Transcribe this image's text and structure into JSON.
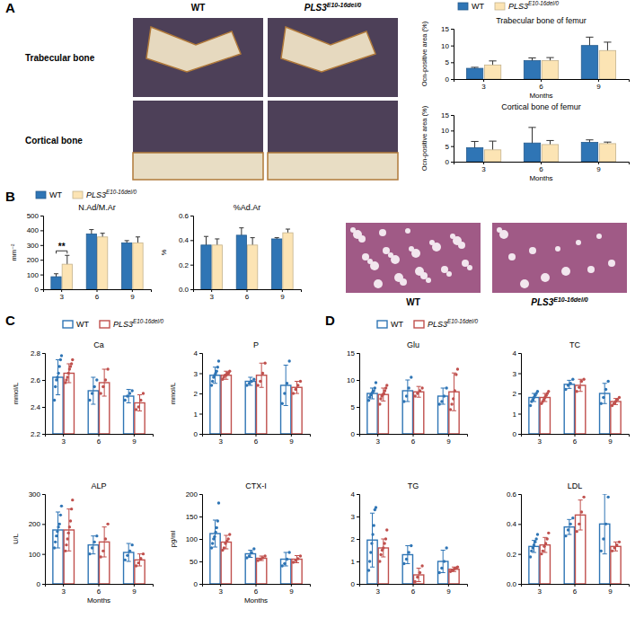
{
  "figure": {
    "panel_labels": [
      "A",
      "B",
      "C",
      "D"
    ],
    "images": [
      {
        "row_labels": [
          "Trabecular bone",
          "Cortical bone"
        ],
        "column_labels": [
          "WT",
          "PLS3E10-16del/0"
        ]
      },
      {
        "column_labels": [
          "WT",
          "PLS3E10-16del/0"
        ]
      }
    ]
  },
  "chart_data": [
    {
      "type": "bar",
      "title": "Trabecular bone of femur",
      "y_label": "Ocn-positive area (%)",
      "x_label": "Months",
      "categories": [
        "3",
        "6",
        "9"
      ],
      "ylim": [
        0,
        15
      ],
      "yticks": [
        0,
        5,
        10,
        15
      ],
      "series": [
        {
          "name": "WT",
          "color": "#2f75b5",
          "values": [
            3.2,
            5.5,
            10
          ],
          "errors": [
            0.3,
            0.8,
            2.5
          ]
        },
        {
          "name": "PLS3E10-16del/0",
          "color": "#fce4b4",
          "values": [
            4.2,
            5.5,
            8.5
          ],
          "errors": [
            1.2,
            0.9,
            2.5
          ]
        }
      ]
    },
    {
      "type": "bar",
      "title": "Cortical bone of femur",
      "y_label": "Ocn-positive area (%)",
      "x_label": "Months",
      "categories": [
        "3",
        "6",
        "9"
      ],
      "ylim": [
        0,
        15
      ],
      "yticks": [
        0,
        5,
        10,
        15
      ],
      "series": [
        {
          "name": "WT",
          "color": "#2f75b5",
          "values": [
            4.5,
            6,
            6.2
          ],
          "errors": [
            2,
            5,
            0.8
          ]
        },
        {
          "name": "PLS3E10-16del/0",
          "color": "#fce4b4",
          "values": [
            3.8,
            5.5,
            5.8
          ],
          "errors": [
            2.8,
            1.3,
            0.5
          ]
        }
      ]
    },
    {
      "type": "bar",
      "title": "N.Ad/M.Ar",
      "y_label": "mm⁻²",
      "categories": [
        "3",
        "6",
        "9"
      ],
      "ylim": [
        0,
        500
      ],
      "yticks": [
        0,
        100,
        200,
        300,
        400,
        500
      ],
      "annotations": [
        {
          "text": "**",
          "x": "3"
        }
      ],
      "series": [
        {
          "name": "WT",
          "color": "#2f75b5",
          "values": [
            85,
            375,
            315
          ],
          "errors": [
            20,
            30,
            15
          ]
        },
        {
          "name": "PLS3E10-16del/0",
          "color": "#fce4b4",
          "values": [
            170,
            355,
            315
          ],
          "errors": [
            60,
            25,
            40
          ]
        }
      ]
    },
    {
      "type": "bar",
      "title": "%Ad.Ar",
      "y_label": "%",
      "categories": [
        "3",
        "6",
        "9"
      ],
      "ylim": [
        0,
        0.6
      ],
      "yticks": [
        {
          "value": 0,
          "label": "0.0"
        },
        {
          "value": 0.2,
          "label": "0.2"
        },
        {
          "value": 0.4,
          "label": "0.4"
        },
        {
          "value": 0.6,
          "label": "0.6"
        }
      ],
      "series": [
        {
          "name": "WT",
          "color": "#2f75b5",
          "values": [
            0.36,
            0.44,
            0.41
          ],
          "errors": [
            0.07,
            0.06,
            0.01
          ]
        },
        {
          "name": "PLS3E10-16del/0",
          "color": "#fce4b4",
          "values": [
            0.36,
            0.36,
            0.46
          ],
          "errors": [
            0.05,
            0.06,
            0.03
          ]
        }
      ]
    },
    {
      "type": "bar",
      "title": "Ca",
      "y_label": "mmol/L",
      "categories": [
        "3",
        "6",
        "9"
      ],
      "ylim": [
        2.2,
        2.8
      ],
      "yticks": [
        2.2,
        2.4,
        2.6,
        2.8
      ],
      "series": [
        {
          "name": "WT",
          "color": "#2f75b5",
          "values": [
            2.62,
            2.52,
            2.48
          ],
          "errors": [
            0.13,
            0.1,
            0.05
          ],
          "points": [
            [
              2.45,
              2.55,
              2.6,
              2.62,
              2.65,
              2.7,
              2.75,
              2.78
            ],
            [
              2.45,
              2.5,
              2.55,
              2.6
            ],
            [
              2.45,
              2.48,
              2.5,
              2.52
            ]
          ]
        },
        {
          "name": "PLS3E10-16del/0",
          "color": "#c0504d",
          "values": [
            2.65,
            2.58,
            2.43
          ],
          "errors": [
            0.07,
            0.1,
            0.06
          ],
          "points": [
            [
              2.58,
              2.6,
              2.62,
              2.65,
              2.68,
              2.7,
              2.72,
              2.75
            ],
            [
              2.5,
              2.55,
              2.6,
              2.68
            ],
            [
              2.38,
              2.4,
              2.45,
              2.5
            ]
          ]
        }
      ]
    },
    {
      "type": "bar",
      "title": "P",
      "y_label": "mmol/L",
      "categories": [
        "3",
        "6",
        "9"
      ],
      "ylim": [
        0,
        4
      ],
      "yticks": [
        0,
        1,
        2,
        3,
        4
      ],
      "series": [
        {
          "name": "WT",
          "color": "#2f75b5",
          "values": [
            2.9,
            2.6,
            2.4
          ],
          "errors": [
            0.4,
            0.2,
            1.0
          ],
          "points": [
            [
              2.4,
              2.6,
              2.8,
              2.9,
              3.0,
              3.1,
              3.3,
              3.6
            ],
            [
              2.4,
              2.5,
              2.6,
              2.7
            ],
            [
              1.5,
              2.0,
              2.5,
              3.6
            ]
          ]
        },
        {
          "name": "PLS3E10-16del/0",
          "color": "#c0504d",
          "values": [
            2.9,
            2.9,
            2.3
          ],
          "errors": [
            0.2,
            0.6,
            0.3
          ],
          "points": [
            [
              2.7,
              2.8,
              2.9,
              2.9,
              3.0,
              3.0,
              3.1
            ],
            [
              2.4,
              2.6,
              3.0,
              3.5
            ],
            [
              2.0,
              2.2,
              2.4,
              2.6
            ]
          ]
        }
      ]
    },
    {
      "type": "bar",
      "title": "ALP",
      "y_label": "U/L",
      "x_label": "Months",
      "categories": [
        "3",
        "6",
        "9"
      ],
      "ylim": [
        0,
        300
      ],
      "yticks": [
        0,
        100,
        200,
        300
      ],
      "series": [
        {
          "name": "WT",
          "color": "#2f75b5",
          "values": [
            180,
            130,
            105
          ],
          "errors": [
            60,
            30,
            30
          ],
          "points": [
            [
              120,
              140,
              160,
              175,
              190,
              200,
              230,
              260
            ],
            [
              100,
              120,
              140,
              160
            ],
            [
              80,
              95,
              110,
              130
            ]
          ]
        },
        {
          "name": "PLS3E10-16del/0",
          "color": "#c0504d",
          "values": [
            180,
            140,
            80
          ],
          "errors": [
            70,
            50,
            20
          ],
          "points": [
            [
              110,
              130,
              150,
              170,
              190,
              210,
              250,
              280
            ],
            [
              90,
              110,
              150,
              200
            ],
            [
              60,
              70,
              85,
              100
            ]
          ]
        }
      ]
    },
    {
      "type": "bar",
      "title": "CTX-I",
      "y_label": "pg/ml",
      "x_label": "Months",
      "categories": [
        "3",
        "6",
        "9"
      ],
      "ylim": [
        0,
        200
      ],
      "yticks": [
        0,
        50,
        100,
        150,
        200
      ],
      "series": [
        {
          "name": "WT",
          "color": "#2f75b5",
          "values": [
            112,
            67,
            55
          ],
          "errors": [
            30,
            8,
            15
          ],
          "points": [
            [
              80,
              90,
              100,
              105,
              115,
              125,
              140,
              180
            ],
            [
              58,
              62,
              70,
              78
            ],
            [
              40,
              45,
              55,
              70
            ]
          ]
        },
        {
          "name": "PLS3E10-16del/0",
          "color": "#c0504d",
          "values": [
            93,
            57,
            55
          ],
          "errors": [
            15,
            5,
            8
          ],
          "points": [
            [
              75,
              80,
              90,
              95,
              100,
              110
            ],
            [
              52,
              55,
              58,
              62
            ],
            [
              48,
              52,
              56,
              62
            ]
          ]
        }
      ]
    },
    {
      "type": "bar",
      "title": "Glu",
      "categories": [
        "3",
        "6",
        "9"
      ],
      "ylim": [
        0,
        15
      ],
      "yticks": [
        0,
        5,
        10,
        15
      ],
      "series": [
        {
          "name": "WT",
          "color": "#2f75b5",
          "values": [
            7.5,
            8,
            7
          ],
          "errors": [
            1,
            2,
            1.5
          ],
          "points": [
            [
              6.2,
              6.8,
              7.2,
              7.5,
              7.8,
              8.0,
              8.5,
              9.5
            ],
            [
              6.0,
              7.0,
              8.5,
              10.5
            ],
            [
              5.5,
              6.0,
              7.0,
              8.5
            ]
          ]
        },
        {
          "name": "PLS3E10-16del/0",
          "color": "#c0504d",
          "values": [
            7.3,
            7.8,
            7.8
          ],
          "errors": [
            1.2,
            1,
            3.5
          ],
          "points": [
            [
              5.5,
              6.5,
              7.0,
              7.3,
              7.5,
              8.0,
              8.5,
              9.0
            ],
            [
              7.0,
              7.5,
              8.0,
              8.5
            ],
            [
              4.5,
              5.5,
              6.5,
              8.0,
              11.0,
              12.0
            ]
          ]
        }
      ]
    },
    {
      "type": "bar",
      "title": "TC",
      "categories": [
        "3",
        "6",
        "9"
      ],
      "ylim": [
        0,
        4
      ],
      "yticks": [
        0,
        1,
        2,
        3,
        4
      ],
      "series": [
        {
          "name": "WT",
          "color": "#2f75b5",
          "values": [
            1.8,
            2.45,
            2.0
          ],
          "errors": [
            0.2,
            0.2,
            0.5
          ],
          "points": [
            [
              1.4,
              1.6,
              1.7,
              1.8,
              1.9,
              2.0,
              2.1
            ],
            [
              2.2,
              2.4,
              2.5,
              2.7
            ],
            [
              1.5,
              1.8,
              2.2,
              2.6
            ]
          ]
        },
        {
          "name": "PLS3E10-16del/0",
          "color": "#c0504d",
          "values": [
            1.8,
            2.4,
            1.6
          ],
          "errors": [
            0.2,
            0.3,
            0.15
          ],
          "points": [
            [
              1.5,
              1.6,
              1.7,
              1.8,
              1.9,
              2.0,
              2.1
            ],
            [
              2.1,
              2.3,
              2.6,
              2.7
            ],
            [
              1.4,
              1.5,
              1.6,
              1.7,
              1.8
            ]
          ]
        }
      ]
    },
    {
      "type": "bar",
      "title": "TG",
      "categories": [
        "3",
        "6",
        "9"
      ],
      "ylim": [
        0,
        4
      ],
      "yticks": [
        0,
        1,
        2,
        3,
        4
      ],
      "series": [
        {
          "name": "WT",
          "color": "#2f75b5",
          "values": [
            1.95,
            1.3,
            1.0
          ],
          "errors": [
            1.2,
            0.4,
            0.5
          ],
          "points": [
            [
              0.6,
              1.0,
              1.4,
              1.8,
              2.2,
              2.6,
              3.3,
              3.4
            ],
            [
              0.9,
              1.1,
              1.4,
              1.7
            ],
            [
              0.5,
              0.7,
              1.0,
              1.6
            ]
          ]
        },
        {
          "name": "PLS3E10-16del/0",
          "color": "#c0504d",
          "values": [
            1.6,
            0.4,
            0.65
          ],
          "errors": [
            0.4,
            0.3,
            0.1
          ],
          "points": [
            [
              1.0,
              1.3,
              1.5,
              1.6,
              1.8,
              2.0,
              2.4
            ],
            [
              0.1,
              0.3,
              0.5,
              0.8
            ],
            [
              0.55,
              0.6,
              0.65,
              0.7,
              0.75
            ]
          ]
        }
      ]
    },
    {
      "type": "bar",
      "title": "LDL",
      "categories": [
        "3",
        "6",
        "9"
      ],
      "ylim": [
        0,
        0.6
      ],
      "yticks": [
        {
          "value": 0,
          "label": "0.0"
        },
        {
          "value": 0.2,
          "label": "0.2"
        },
        {
          "value": 0.4,
          "label": "0.4"
        },
        {
          "value": 0.6,
          "label": "0.6"
        }
      ],
      "series": [
        {
          "name": "WT",
          "color": "#2f75b5",
          "values": [
            0.25,
            0.38,
            0.4
          ],
          "errors": [
            0.04,
            0.05,
            0.2
          ],
          "points": [
            [
              0.18,
              0.22,
              0.24,
              0.26,
              0.28,
              0.3,
              0.33
            ],
            [
              0.32,
              0.36,
              0.4,
              0.44
            ],
            [
              0.22,
              0.3,
              0.4,
              0.58
            ]
          ]
        },
        {
          "name": "PLS3E10-16del/0",
          "color": "#c0504d",
          "values": [
            0.26,
            0.46,
            0.25
          ],
          "errors": [
            0.05,
            0.1,
            0.03
          ],
          "points": [
            [
              0.2,
              0.22,
              0.25,
              0.27,
              0.3,
              0.34
            ],
            [
              0.35,
              0.4,
              0.48,
              0.58
            ],
            [
              0.22,
              0.24,
              0.26,
              0.28
            ]
          ]
        }
      ]
    }
  ]
}
